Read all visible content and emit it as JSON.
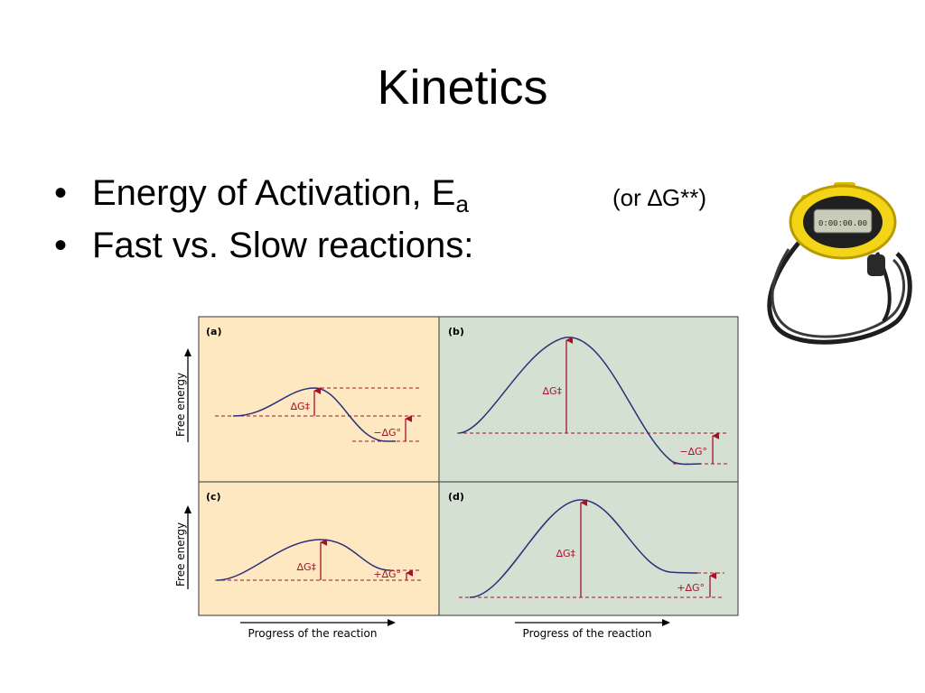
{
  "slide": {
    "title": "Kinetics",
    "bullet_symbol": "•",
    "bullets": [
      {
        "text": "Energy of Activation, E",
        "subscript": "a"
      },
      {
        "text": "Fast vs. Slow reactions:"
      }
    ],
    "aside_note": "(or ∆G**)",
    "stopwatch_display": "0:00:00.00"
  },
  "figure": {
    "colors": {
      "panel_left": "#fde8c1",
      "panel_right": "#d4e0d1",
      "curve": "#2b2f78",
      "arrow": "#a8102a",
      "border": "#555555"
    },
    "y_axis_label": "Free energy",
    "x_axis_label": "Progress of the reaction",
    "panels": [
      {
        "id": "a",
        "tag": "(a)",
        "activation_label": "∆G‡",
        "delta_label": "−∆G°"
      },
      {
        "id": "b",
        "tag": "(b)",
        "activation_label": "∆G‡",
        "delta_label": "−∆G°"
      },
      {
        "id": "c",
        "tag": "(c)",
        "activation_label": "∆G‡",
        "delta_label": "+∆G°"
      },
      {
        "id": "d",
        "tag": "(d)",
        "activation_label": "∆G‡",
        "delta_label": "+∆G°"
      }
    ]
  }
}
